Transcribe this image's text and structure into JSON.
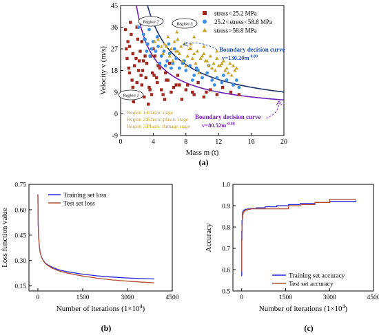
{
  "chart_data": [
    {
      "type": "scatter",
      "panel_label": "(a)",
      "xlabel": "Mass m (t)",
      "ylabel": "Velocity v (m/s)",
      "xlim": [
        0,
        20
      ],
      "ylim": [
        -9,
        45
      ],
      "x_ticks": [
        "0",
        "4",
        "8",
        "12",
        "16",
        "20"
      ],
      "y_ticks": [
        "-9",
        "0",
        "9",
        "18",
        "27",
        "36",
        "45"
      ],
      "legend": [
        "stress < 25.2 MPa",
        "25.2 < stress < 58.8 MPa",
        "stress > 58.8 MPa"
      ],
      "colors": {
        "low": "#a0281e",
        "mid": "#3a8ee6",
        "high": "#c9a227",
        "curve_upper": "#1b2f6b",
        "curve_lower": "#6a1fb5"
      },
      "region_labels": [
        "Region 1",
        "Region 2",
        "Region 3"
      ],
      "stage_labels": [
        "Region 1:Elastic stage",
        "Region 2:Elastic-plastic stage",
        "Region 3:Plastic damage stage"
      ],
      "curves": [
        {
          "title": "Boundary decision curve",
          "equation": "v=130.20m",
          "exponent": "-0.89",
          "coef": 130.2,
          "exp": -0.89
        },
        {
          "title": "Boundary decision curve",
          "equation": "v=80.52m",
          "exponent": "-0.88",
          "coef": 80.52,
          "exp": -0.88
        }
      ],
      "series": [
        {
          "name": "stress<25.2 MPa",
          "marker": "square",
          "x": [
            0.6,
            0.9,
            1.1,
            1.3,
            1.5,
            1.7,
            1.9,
            2.2,
            2.4,
            2.6,
            2.8,
            3.1,
            3.3,
            3.6,
            3.9,
            4.2,
            4.5,
            4.8,
            5.2,
            5.6,
            6.0,
            6.5,
            7.0,
            7.5,
            8.2,
            8.8,
            9.5,
            10.2,
            11.0,
            11.8,
            12.5,
            13.5,
            14.5,
            1.0,
            1.4,
            1.8,
            2.1,
            2.5,
            2.9,
            3.2,
            3.5,
            4.0,
            4.4,
            5.0,
            5.5,
            6.2,
            7.2,
            8.0,
            9.0,
            10.5,
            0.8,
            1.6,
            2.0,
            2.7,
            3.0,
            3.8,
            4.6,
            5.4,
            6.8,
            1.2,
            2.3,
            3.4,
            4.1,
            5.8,
            0.7,
            1.5,
            2.6,
            3.7,
            2.0,
            1.1
          ],
          "y": [
            35,
            30,
            28,
            33,
            25,
            20,
            23,
            18,
            26,
            12,
            22,
            15,
            29,
            10,
            17,
            24,
            13,
            19,
            8,
            14,
            21,
            11,
            16,
            6,
            12,
            9,
            13,
            7,
            10,
            8,
            11,
            9,
            8,
            19,
            14,
            9,
            31,
            16,
            7,
            21,
            11,
            27,
            15,
            10,
            17,
            9,
            12,
            10,
            8,
            9,
            23,
            5,
            13,
            18,
            24,
            8,
            20,
            6,
            12,
            38,
            22,
            4,
            16,
            14,
            27,
            11,
            30,
            24,
            36,
            17
          ]
        },
        {
          "name": "25.2<stress<58.8 MPa",
          "marker": "circle",
          "x": [
            2.5,
            2.8,
            3.0,
            3.3,
            3.5,
            3.8,
            4.0,
            4.3,
            4.6,
            5.0,
            5.3,
            5.7,
            6.0,
            6.4,
            6.8,
            7.2,
            7.6,
            8.0,
            8.5,
            9.0,
            9.5,
            10.0,
            10.6,
            11.2,
            11.8,
            12.4,
            13.0,
            13.8,
            14.5,
            2.2,
            3.2,
            4.5,
            5.5,
            6.6,
            7.8,
            9.3,
            10.8,
            12.6,
            14.2,
            3.6,
            4.8,
            6.2,
            8.8,
            11.5,
            2.9,
            5.9
          ],
          "y": [
            38,
            33,
            31,
            29,
            35,
            27,
            30,
            26,
            28,
            24,
            26,
            22,
            25,
            21,
            23,
            19,
            21,
            18,
            20,
            16,
            18,
            15,
            17,
            14,
            15,
            13,
            14,
            12,
            11,
            36,
            26,
            32,
            20,
            27,
            22,
            19,
            20,
            16,
            14,
            24,
            21,
            19,
            14,
            12,
            31,
            29
          ]
        },
        {
          "name": "stress>58.8 MPa",
          "marker": "triangle",
          "x": [
            4.2,
            4.6,
            5.0,
            5.4,
            5.8,
            6.2,
            6.6,
            7.0,
            7.4,
            7.8,
            8.2,
            8.6,
            9.0,
            9.4,
            9.8,
            10.2,
            10.6,
            11.0,
            11.4,
            11.8,
            12.2,
            12.6,
            13.0,
            13.4,
            13.8,
            14.2,
            5.2,
            6.0,
            6.8,
            7.6,
            8.4,
            9.2,
            10.0,
            10.8,
            11.6,
            12.4,
            13.2,
            14.0,
            5.6,
            6.4,
            7.2,
            8.0,
            8.8,
            9.6,
            10.4,
            11.2,
            12.0,
            12.8,
            13.6,
            7.0,
            8.6,
            10.2,
            11.8,
            9.0,
            6.9
          ],
          "y": [
            30,
            31,
            28,
            29,
            32,
            27,
            30,
            26,
            28,
            29,
            24,
            27,
            25,
            26,
            23,
            25,
            22,
            24,
            21,
            23,
            20,
            22,
            19,
            21,
            20,
            19,
            25,
            24,
            26,
            22,
            27,
            21,
            24,
            20,
            18,
            21,
            17,
            18,
            28,
            22,
            25,
            20,
            23,
            17,
            22,
            19,
            20,
            18,
            16,
            31,
            29,
            28,
            26,
            32,
            34
          ]
        }
      ]
    },
    {
      "type": "line",
      "panel_label": "(b)",
      "xlabel": "Number of iterations (1×10",
      "xlabel_sup": "4",
      "xlabel_end": ")",
      "ylabel": "Loss function value",
      "xlim": [
        -300,
        4500
      ],
      "ylim": [
        0.12,
        0.75
      ],
      "x_ticks": [
        "0",
        "1500",
        "3000",
        "4500"
      ],
      "y_ticks": [
        "0.15",
        "0.30",
        "0.45",
        "0.60",
        "0.75"
      ],
      "series": [
        {
          "name": "Training set loss",
          "color": "#2222dd",
          "x": [
            0,
            10,
            25,
            50,
            80,
            120,
            180,
            250,
            350,
            500,
            700,
            1000,
            1500,
            2000,
            2500,
            3000,
            3500,
            3900
          ],
          "y": [
            0.69,
            0.52,
            0.44,
            0.38,
            0.345,
            0.32,
            0.3,
            0.285,
            0.272,
            0.258,
            0.245,
            0.233,
            0.219,
            0.209,
            0.202,
            0.197,
            0.193,
            0.191
          ]
        },
        {
          "name": "Test set loss",
          "color": "#b05030",
          "x": [
            0,
            10,
            25,
            50,
            80,
            120,
            180,
            250,
            350,
            500,
            700,
            1000,
            1500,
            2000,
            2500,
            3000,
            3500,
            3900
          ],
          "y": [
            0.69,
            0.52,
            0.44,
            0.38,
            0.344,
            0.318,
            0.298,
            0.282,
            0.268,
            0.253,
            0.239,
            0.225,
            0.208,
            0.195,
            0.185,
            0.178,
            0.172,
            0.168
          ]
        }
      ]
    },
    {
      "type": "line",
      "panel_label": "(c)",
      "xlabel": "Number of iterations (1×10",
      "xlabel_sup": "4",
      "xlabel_end": ")",
      "ylabel": "Accuracy",
      "xlim": [
        -300,
        4500
      ],
      "ylim": [
        0.5,
        1.0
      ],
      "x_ticks": [
        "0",
        "1500",
        "3000",
        "4500"
      ],
      "y_ticks": [
        "0.5",
        "0.6",
        "0.7",
        "0.8",
        "0.9",
        "1.0"
      ],
      "series": [
        {
          "name": "Training set accuracy",
          "color": "#2222dd",
          "x": [
            0,
            1,
            10,
            20,
            30,
            50,
            80,
            120,
            200,
            300,
            500,
            800,
            1200,
            1600,
            2000,
            2500,
            3000,
            3500,
            3900
          ],
          "y": [
            0.57,
            0.78,
            0.83,
            0.86,
            0.87,
            0.875,
            0.88,
            0.883,
            0.885,
            0.887,
            0.89,
            0.895,
            0.9,
            0.905,
            0.91,
            0.915,
            0.92,
            0.92,
            0.925
          ]
        },
        {
          "name": "Test set accuracy",
          "color": "#b05030",
          "x": [
            0,
            1,
            10,
            20,
            30,
            50,
            80,
            120,
            200,
            300,
            500,
            800,
            1200,
            1600,
            2000,
            2500,
            3000,
            3500,
            3900
          ],
          "y": [
            0.59,
            0.74,
            0.81,
            0.84,
            0.86,
            0.87,
            0.875,
            0.88,
            0.883,
            0.885,
            0.885,
            0.885,
            0.885,
            0.9,
            0.905,
            0.915,
            0.93,
            0.93,
            0.93
          ]
        }
      ]
    }
  ]
}
